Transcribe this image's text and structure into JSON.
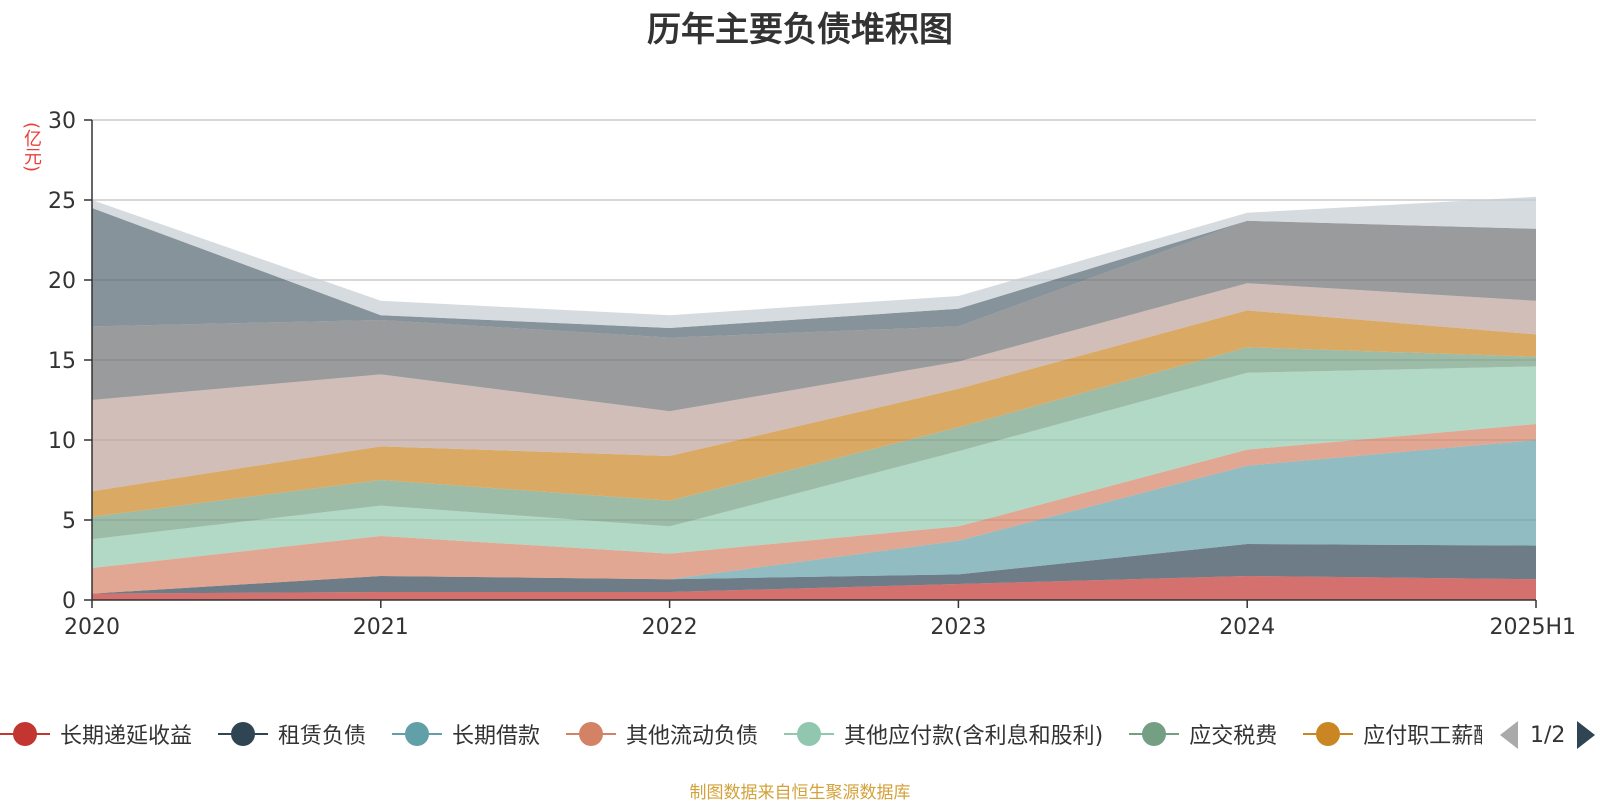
{
  "chart_data": {
    "type": "area",
    "stacked": true,
    "title": "历年主要负债堆积图",
    "unit": "(亿元)",
    "x": [
      "2020",
      "2021",
      "2022",
      "2023",
      "2024",
      "2025H1"
    ],
    "ylim": [
      0,
      30
    ],
    "yticks": [
      0,
      5,
      10,
      15,
      20,
      25,
      30
    ],
    "grid": true,
    "legend_position": "bottom",
    "series": [
      {
        "name": "长期递延收益",
        "color": "#c23531",
        "values": [
          0.4,
          0.5,
          0.5,
          1.0,
          1.5,
          1.3
        ]
      },
      {
        "name": "租赁负债",
        "color": "#2f4554",
        "values": [
          0.0,
          1.0,
          0.8,
          0.6,
          2.0,
          2.1
        ]
      },
      {
        "name": "长期借款",
        "color": "#61a0a8",
        "values": [
          0.0,
          0.0,
          0.0,
          2.1,
          4.9,
          6.6
        ]
      },
      {
        "name": "其他流动负债",
        "color": "#d48265",
        "values": [
          1.6,
          2.5,
          1.6,
          0.9,
          1.0,
          1.0
        ]
      },
      {
        "name": "其他应付款(含利息和股利)",
        "color": "#91c7ae",
        "values": [
          1.8,
          1.9,
          1.7,
          4.7,
          4.8,
          3.6
        ]
      },
      {
        "name": "应交税费",
        "color": "#749f83",
        "values": [
          1.4,
          1.6,
          1.6,
          1.5,
          1.6,
          0.6
        ]
      },
      {
        "name": "应付职工薪酬",
        "color": "#ca8622",
        "values": [
          1.6,
          2.1,
          2.8,
          2.4,
          2.3,
          1.4
        ]
      },
      {
        "name": "",
        "color": "#bda29a",
        "values": [
          5.7,
          4.5,
          2.8,
          1.7,
          1.7,
          2.1
        ]
      },
      {
        "name": "",
        "color": "#6e7074",
        "values": [
          4.6,
          3.4,
          4.6,
          2.2,
          3.9,
          4.5
        ]
      },
      {
        "name": "",
        "color": "#546570",
        "values": [
          7.4,
          0.3,
          0.6,
          1.1,
          0.0,
          0.0
        ]
      },
      {
        "name": "",
        "color": "#c4ccd3",
        "values": [
          0.5,
          0.9,
          0.8,
          0.8,
          0.5,
          2.0
        ]
      }
    ]
  },
  "legend_items": [
    {
      "label": "长期递延收益",
      "color": "#c23531"
    },
    {
      "label": "租赁负债",
      "color": "#2f4554"
    },
    {
      "label": "长期借款",
      "color": "#61a0a8"
    },
    {
      "label": "其他流动负债",
      "color": "#d48265"
    },
    {
      "label": "其他应付款(含利息和股利)",
      "color": "#91c7ae"
    },
    {
      "label": "应交税费",
      "color": "#749f83"
    },
    {
      "label": "应付职工薪酬",
      "color": "#ca8622"
    }
  ],
  "legend_pager": "1/2",
  "source_note": "制图数据来自恒生聚源数据库"
}
